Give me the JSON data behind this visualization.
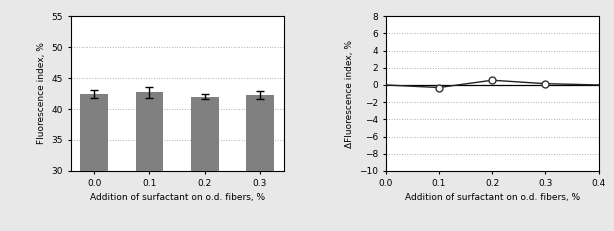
{
  "left": {
    "categories": [
      "0.0",
      "0.1",
      "0.2",
      "0.3"
    ],
    "values": [
      42.4,
      42.7,
      42.0,
      42.3
    ],
    "errors": [
      0.6,
      0.9,
      0.45,
      0.65
    ],
    "bar_color": "#808080",
    "ylabel": "Fluorescence index, %",
    "xlabel": "Addition of surfactant on o.d. fibers, %",
    "ylim": [
      30,
      55
    ],
    "yticks": [
      30,
      35,
      40,
      45,
      50,
      55
    ]
  },
  "right": {
    "x": [
      0.0,
      0.1,
      0.2,
      0.3,
      0.4
    ],
    "y": [
      0.0,
      -0.3,
      0.55,
      0.15,
      0.0
    ],
    "point_x": [
      0.1,
      0.2,
      0.3
    ],
    "point_y": [
      -0.3,
      0.55,
      0.15
    ],
    "ylabel": "ΔFluorescence index, %",
    "xlabel": "Addition of surfactant on o.d. fibers, %",
    "ylim": [
      -10,
      8
    ],
    "yticks": [
      -10,
      -8,
      -6,
      -4,
      -2,
      0,
      2,
      4,
      6,
      8
    ],
    "xticks": [
      0.0,
      0.1,
      0.2,
      0.3,
      0.4
    ],
    "xlim": [
      0.0,
      0.4
    ],
    "line_color": "#222222",
    "marker_color": "white",
    "marker_edge_color": "#333333"
  },
  "fig_facecolor": "#e8e8e8",
  "plot_facecolor": "#ffffff"
}
